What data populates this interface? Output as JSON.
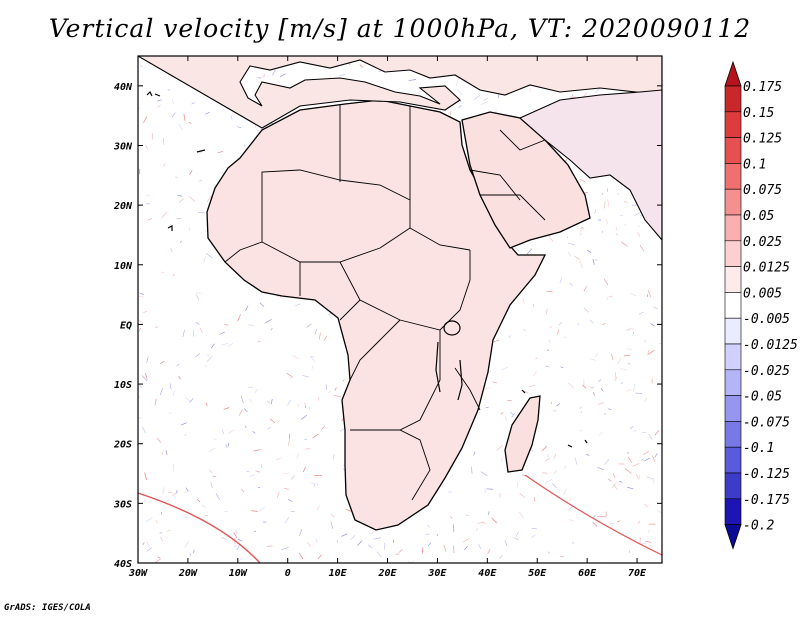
{
  "title": "Vertical velocity [m/s] at 1000hPa, VT: 2020090112",
  "footer": "GrADS: IGES/COLA",
  "map": {
    "lon_ticks": [
      "30W",
      "20W",
      "10W",
      "0",
      "10E",
      "20E",
      "30E",
      "40E",
      "50E",
      "60E",
      "70E"
    ],
    "lat_ticks": [
      "40N",
      "30N",
      "20N",
      "10N",
      "EQ",
      "10S",
      "20S",
      "30S",
      "40S"
    ],
    "lon_range": [
      -30,
      75
    ],
    "lat_range": [
      -40,
      45
    ]
  },
  "colorbar": {
    "levels": [
      "0.175",
      "0.15",
      "0.125",
      "0.1",
      "0.075",
      "0.05",
      "0.025",
      "0.0125",
      "0.005",
      "-0.005",
      "-0.0125",
      "-0.025",
      "-0.05",
      "-0.075",
      "-0.1",
      "-0.125",
      "-0.175",
      "-0.2"
    ],
    "colors": [
      "#b4141e",
      "#c8282a",
      "#dc3c3c",
      "#e65050",
      "#f07070",
      "#f59090",
      "#fab0b0",
      "#fcd0d0",
      "#feeaea",
      "#ffffff",
      "#ebebfe",
      "#d0d0fc",
      "#b4b4f8",
      "#9696f0",
      "#7878e6",
      "#5a5adc",
      "#3c3cc8",
      "#1e14b4",
      "#0a0a96"
    ]
  },
  "chart_data": {
    "type": "heatmap",
    "title": "Vertical velocity [m/s] at 1000hPa, VT: 2020090112",
    "x_range": [
      -30,
      75
    ],
    "y_range": [
      -40,
      45
    ],
    "levels": [
      0.175,
      0.15,
      0.125,
      0.1,
      0.075,
      0.05,
      0.025,
      0.0125,
      0.005,
      -0.005,
      -0.0125,
      -0.025,
      -0.05,
      -0.075,
      -0.1,
      -0.125,
      -0.175,
      -0.2
    ]
  }
}
